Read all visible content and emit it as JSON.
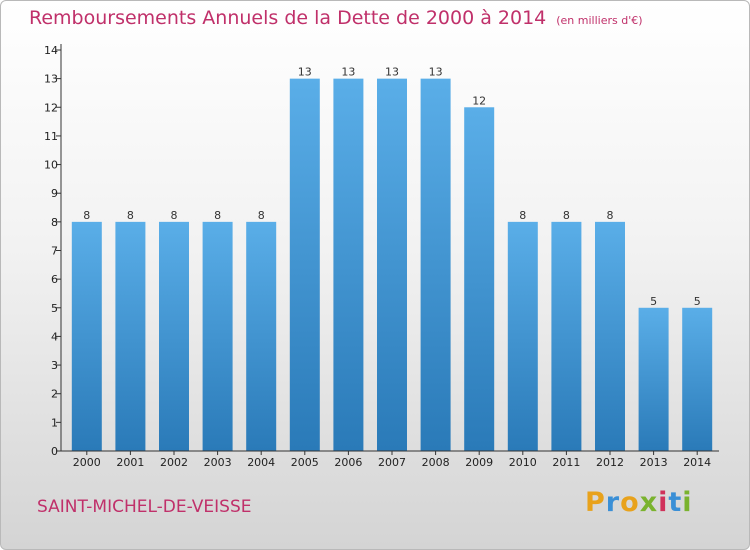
{
  "header": {
    "title": "Remboursements Annuels de la Dette de 2000 à 2014",
    "unit": "(en milliers d'€)"
  },
  "footer": {
    "commune": "SAINT-MICHEL-DE-VEISSE",
    "logo_letters": [
      "P",
      "r",
      "o",
      "x",
      "i",
      "t",
      "i"
    ],
    "logo_colors": [
      "#e8a21c",
      "#3a8fd6",
      "#e8a21c",
      "#7ab32e",
      "#d0315a",
      "#3a8fd6",
      "#7ab32e"
    ]
  },
  "chart_data": {
    "type": "bar",
    "title": "Remboursements Annuels de la Dette de 2000 à 2014",
    "subtitle": "(en milliers d'€)",
    "categories": [
      "2000",
      "2001",
      "2002",
      "2003",
      "2004",
      "2005",
      "2006",
      "2007",
      "2008",
      "2009",
      "2010",
      "2011",
      "2012",
      "2013",
      "2014"
    ],
    "values": [
      8,
      8,
      8,
      8,
      8,
      13,
      13,
      13,
      13,
      12,
      8,
      8,
      8,
      5,
      5
    ],
    "yticks": [
      0,
      1,
      2,
      3,
      4,
      5,
      6,
      7,
      8,
      9,
      10,
      11,
      12,
      13,
      14
    ],
    "ylim": [
      0,
      14
    ],
    "grid": false,
    "colors": {
      "bar_top": "#5aaee8",
      "bar_bottom": "#2a7ab8",
      "axis": "#333333"
    }
  }
}
